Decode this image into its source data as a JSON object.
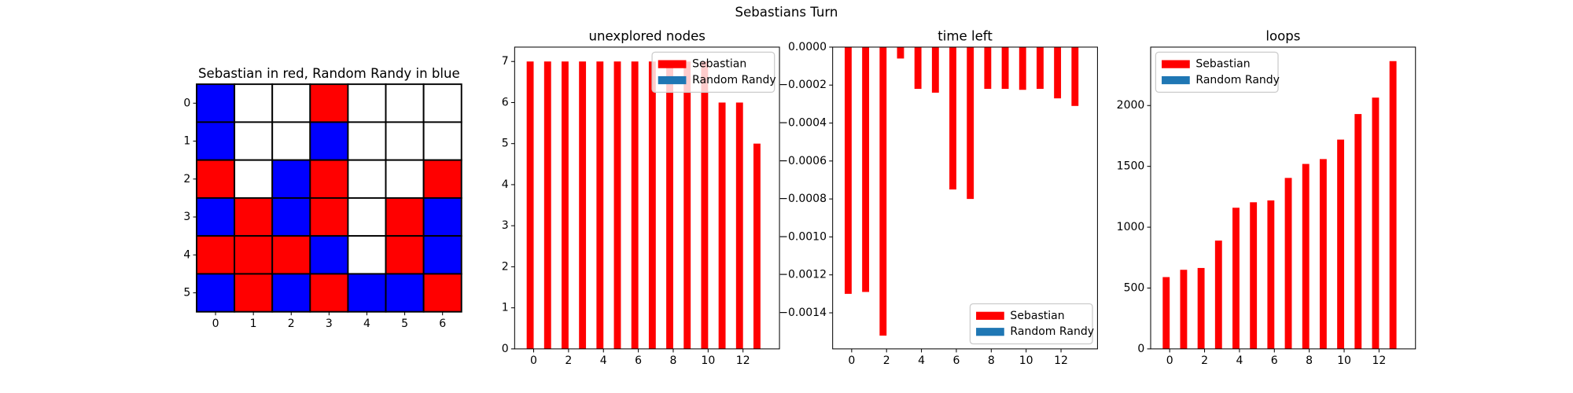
{
  "title": "Sebastians Turn",
  "chart_data": [
    {
      "type": "heatmap",
      "title": "Sebastian in red, Random Randy in blue",
      "cells": [
        [
          "#0000ff",
          "#ffffff",
          "#ffffff",
          "#ff0000",
          "#ffffff",
          "#ffffff",
          "#ffffff"
        ],
        [
          "#0000ff",
          "#ffffff",
          "#ffffff",
          "#0000ff",
          "#ffffff",
          "#ffffff",
          "#ffffff"
        ],
        [
          "#ff0000",
          "#ffffff",
          "#0000ff",
          "#ff0000",
          "#ffffff",
          "#ffffff",
          "#ff0000"
        ],
        [
          "#0000ff",
          "#ff0000",
          "#0000ff",
          "#ff0000",
          "#ffffff",
          "#ff0000",
          "#0000ff"
        ],
        [
          "#ff0000",
          "#ff0000",
          "#ff0000",
          "#0000ff",
          "#ffffff",
          "#ff0000",
          "#0000ff"
        ],
        [
          "#0000ff",
          "#ff0000",
          "#0000ff",
          "#ff0000",
          "#0000ff",
          "#0000ff",
          "#ff0000"
        ]
      ],
      "xlim": [
        -0.5,
        6.5
      ],
      "ylim": [
        5.5,
        -0.5
      ],
      "xticks": [
        0,
        1,
        2,
        3,
        4,
        5,
        6
      ],
      "yticks": [
        0,
        1,
        2,
        3,
        4,
        5
      ]
    },
    {
      "type": "bar",
      "title": "unexplored nodes",
      "x": [
        0,
        1,
        2,
        3,
        4,
        5,
        6,
        7,
        8,
        9,
        10,
        11,
        12,
        13
      ],
      "series": [
        {
          "name": "Sebastian",
          "color": "#ff0000",
          "values": [
            7,
            7,
            7,
            7,
            7,
            7,
            7,
            7,
            7,
            7,
            7,
            6,
            6,
            5
          ]
        },
        {
          "name": "Random Randy",
          "color": "#1f77b4",
          "values": [
            0,
            0,
            0,
            0,
            0,
            0,
            0,
            0,
            0,
            0,
            0,
            0,
            0,
            0
          ]
        }
      ],
      "xlim": [
        -1.09,
        14.09
      ],
      "ylim": [
        0,
        7.35
      ],
      "xticks": [
        0,
        2,
        4,
        6,
        8,
        10,
        12
      ],
      "yticks": [
        0,
        1,
        2,
        3,
        4,
        5,
        6,
        7
      ],
      "legend": "upper right"
    },
    {
      "type": "bar",
      "title": "time left",
      "x": [
        0,
        1,
        2,
        3,
        4,
        5,
        6,
        7,
        8,
        9,
        10,
        11,
        12,
        13
      ],
      "series": [
        {
          "name": "Sebastian",
          "color": "#ff0000",
          "values": [
            -0.0013,
            -0.00129,
            -0.00152,
            -6e-05,
            -0.00022,
            -0.00024,
            -0.00075,
            -0.0008,
            -0.00022,
            -0.00022,
            -0.000225,
            -0.00022,
            -0.00027,
            -0.00031
          ]
        },
        {
          "name": "Random Randy",
          "color": "#1f77b4",
          "values": [
            0,
            0,
            0,
            0,
            0,
            0,
            0,
            0,
            0,
            0,
            0,
            0,
            0,
            0
          ]
        }
      ],
      "xlim": [
        -1.09,
        14.09
      ],
      "ylim": [
        -0.00159,
        0
      ],
      "xticks": [
        0,
        2,
        4,
        6,
        8,
        10,
        12
      ],
      "yticks": [
        {
          "value": 0,
          "label": "0.0000"
        },
        {
          "value": -0.0002,
          "label": "−0.0002"
        },
        {
          "value": -0.0004,
          "label": "−0.0004"
        },
        {
          "value": -0.0006,
          "label": "−0.0006"
        },
        {
          "value": -0.0008,
          "label": "−0.0008"
        },
        {
          "value": -0.001,
          "label": "−0.0010"
        },
        {
          "value": -0.0012,
          "label": "−0.0012"
        },
        {
          "value": -0.0014,
          "label": "−0.0014"
        }
      ],
      "legend": "lower right"
    },
    {
      "type": "bar",
      "title": "loops",
      "x": [
        0,
        1,
        2,
        3,
        4,
        5,
        6,
        7,
        8,
        9,
        10,
        11,
        12,
        13
      ],
      "series": [
        {
          "name": "Sebastian",
          "color": "#ff0000",
          "values": [
            590,
            650,
            665,
            890,
            1160,
            1205,
            1220,
            1405,
            1520,
            1560,
            1720,
            1930,
            2065,
            2365
          ]
        },
        {
          "name": "Random Randy",
          "color": "#1f77b4",
          "values": [
            0,
            0,
            0,
            0,
            0,
            0,
            0,
            0,
            0,
            0,
            0,
            0,
            0,
            0
          ]
        }
      ],
      "xlim": [
        -1.09,
        14.09
      ],
      "ylim": [
        0,
        2480
      ],
      "xticks": [
        0,
        2,
        4,
        6,
        8,
        10,
        12
      ],
      "yticks": [
        0,
        500,
        1000,
        1500,
        2000
      ],
      "legend": "upper left"
    }
  ]
}
